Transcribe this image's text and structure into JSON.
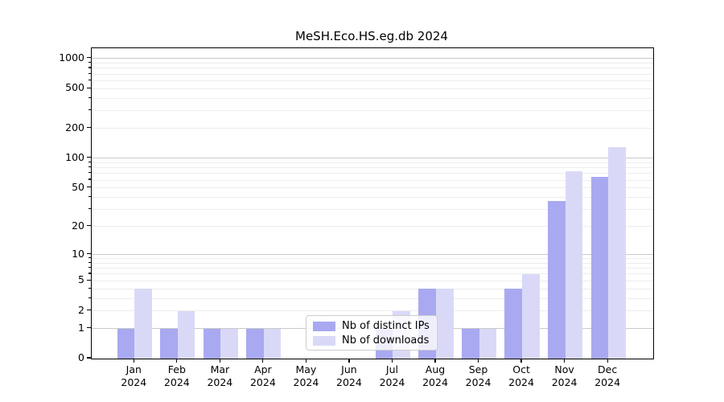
{
  "title": "MeSH.Eco.HS.eg.db 2024",
  "chart_data": {
    "type": "bar",
    "title": "MeSH.Eco.HS.eg.db 2024",
    "categories": [
      "Jan 2024",
      "Feb 2024",
      "Mar 2024",
      "Apr 2024",
      "May 2024",
      "Jun 2024",
      "Jul 2024",
      "Aug 2024",
      "Sep 2024",
      "Oct 2024",
      "Nov 2024",
      "Dec 2024"
    ],
    "series": [
      {
        "name": "Nb of distinct IPs",
        "color": "#a9a9f1",
        "values": [
          1,
          1,
          1,
          1,
          0,
          0,
          1,
          4,
          1,
          4,
          37,
          65
        ]
      },
      {
        "name": "Nb of downloads",
        "color": "#d9d9f7",
        "values": [
          4,
          2,
          1,
          1,
          0,
          0,
          2,
          4,
          1,
          6,
          74,
          129
        ]
      }
    ],
    "xlabel": "",
    "ylabel": "",
    "yscale": "log1p",
    "ylim": [
      0,
      1270
    ],
    "y_ticks": [
      0,
      1,
      2,
      5,
      10,
      20,
      50,
      100,
      200,
      500,
      1000
    ],
    "y_major_gridlines": [
      1,
      10,
      100,
      1000
    ],
    "y_minor_gridlines": [
      2,
      3,
      4,
      5,
      6,
      7,
      8,
      9,
      20,
      30,
      40,
      50,
      60,
      70,
      80,
      90,
      200,
      300,
      400,
      500,
      600,
      700,
      800,
      900
    ],
    "grid": true,
    "legend_position": "lower center"
  }
}
